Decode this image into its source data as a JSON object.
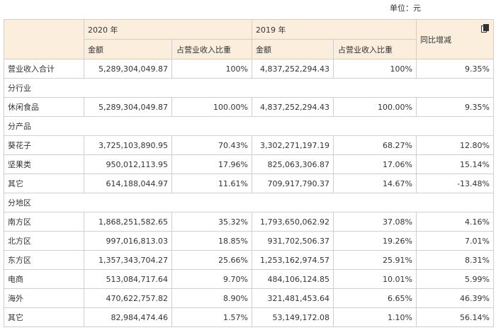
{
  "unit_label": "单位：元",
  "header": {
    "year_2020": "2020 年",
    "year_2019": "2019 年",
    "amount": "金额",
    "share": "占营业收入比重",
    "yoy": "同比增减"
  },
  "icons": {
    "copy": "copy-icon"
  },
  "rows": [
    {
      "type": "data",
      "label": "营业收入合计",
      "a2020": "5,289,304,049.87",
      "s2020": "100%",
      "a2019": "4,837,252,294.43",
      "s2019": "100%",
      "yoy": "9.35%"
    },
    {
      "type": "section",
      "label": "分行业"
    },
    {
      "type": "data",
      "label": "休闲食品",
      "a2020": "5,289,304,049.87",
      "s2020": "100.00%",
      "a2019": "4,837,252,294.43",
      "s2019": "100.00%",
      "yoy": "9.35%"
    },
    {
      "type": "section",
      "label": "分产品"
    },
    {
      "type": "data",
      "label": "葵花子",
      "a2020": "3,725,103,890.95",
      "s2020": "70.43%",
      "a2019": "3,302,271,197.19",
      "s2019": "68.27%",
      "yoy": "12.80%"
    },
    {
      "type": "data",
      "label": "坚果类",
      "a2020": "950,012,113.95",
      "s2020": "17.96%",
      "a2019": "825,063,306.87",
      "s2019": "17.06%",
      "yoy": "15.14%"
    },
    {
      "type": "data",
      "label": "其它",
      "a2020": "614,188,044.97",
      "s2020": "11.61%",
      "a2019": "709,917,790.37",
      "s2019": "14.67%",
      "yoy": "-13.48%"
    },
    {
      "type": "section",
      "label": "分地区"
    },
    {
      "type": "data",
      "label": "南方区",
      "a2020": "1,868,251,582.65",
      "s2020": "35.32%",
      "a2019": "1,793,650,062.92",
      "s2019": "37.08%",
      "yoy": "4.16%"
    },
    {
      "type": "data",
      "label": "北方区",
      "a2020": "997,016,813.03",
      "s2020": "18.85%",
      "a2019": "931,702,506.37",
      "s2019": "19.26%",
      "yoy": "7.01%"
    },
    {
      "type": "data",
      "label": "东方区",
      "a2020": "1,357,343,704.27",
      "s2020": "25.66%",
      "a2019": "1,253,162,974.57",
      "s2019": "25.91%",
      "yoy": "8.31%"
    },
    {
      "type": "data",
      "label": "电商",
      "a2020": "513,084,717.64",
      "s2020": "9.70%",
      "a2019": "484,106,124.85",
      "s2019": "10.01%",
      "yoy": "5.99%"
    },
    {
      "type": "data",
      "label": "海外",
      "a2020": "470,622,757.82",
      "s2020": "8.90%",
      "a2019": "321,481,453.64",
      "s2019": "6.65%",
      "yoy": "46.39%"
    },
    {
      "type": "data",
      "label": "其它",
      "a2020": "82,984,474.46",
      "s2020": "1.57%",
      "a2019": "53,149,172.08",
      "s2019": "1.10%",
      "yoy": "56.14%"
    }
  ]
}
